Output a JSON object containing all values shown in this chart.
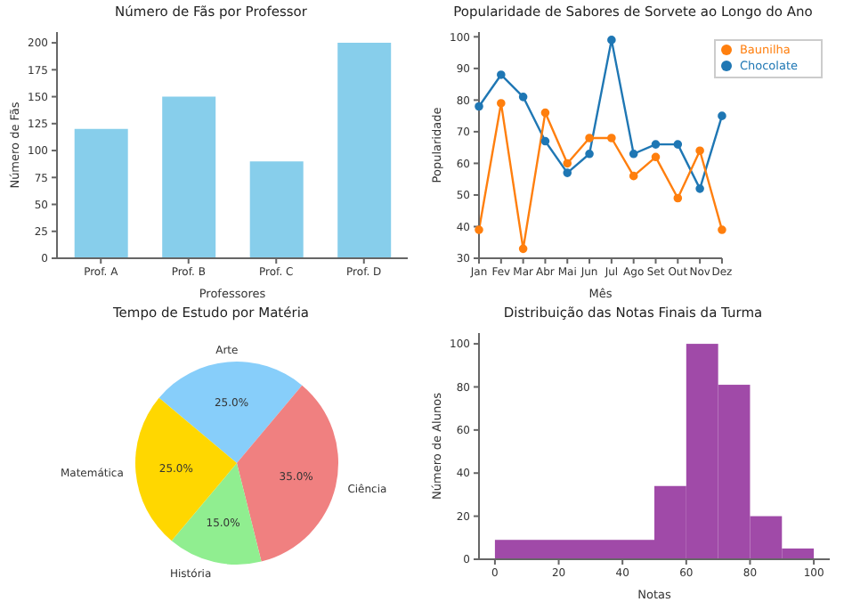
{
  "chart_data": [
    {
      "type": "bar",
      "title": "Número de Fãs por Professor",
      "xlabel": "Professores",
      "ylabel": "Número de Fãs",
      "categories": [
        "Prof. A",
        "Prof. B",
        "Prof. C",
        "Prof. D"
      ],
      "values": [
        120,
        150,
        90,
        200
      ],
      "color": "#87ceeb",
      "ylim": [
        0,
        210
      ],
      "yticks": [
        0,
        25,
        50,
        75,
        100,
        125,
        150,
        175,
        200
      ],
      "grid": false,
      "legend": false
    },
    {
      "type": "line",
      "title": "Popularidade de Sabores de Sorvete ao Longo do Ano",
      "xlabel": "Mês",
      "ylabel": "Popularidade",
      "categories": [
        "Jan",
        "Fev",
        "Mar",
        "Abr",
        "Mai",
        "Jun",
        "Jul",
        "Ago",
        "Set",
        "Out",
        "Nov",
        "Dez"
      ],
      "series": [
        {
          "name": "Chocolate",
          "color": "#1f77b4",
          "values": [
            78,
            88,
            81,
            67,
            57,
            63,
            99,
            63,
            66,
            66,
            52,
            75
          ]
        },
        {
          "name": "Baunilha",
          "color": "#ff7f0e",
          "values": [
            39,
            79,
            33,
            76,
            60,
            68,
            68,
            56,
            62,
            49,
            64,
            39
          ]
        }
      ],
      "ylim": [
        30,
        101.5
      ],
      "yticks": [
        30,
        40,
        50,
        60,
        70,
        80,
        90,
        100
      ],
      "marker": "circle",
      "line_style": "solid",
      "legend": "top right",
      "grid": false
    },
    {
      "type": "pie",
      "title": "Tempo de Estudo por Matéria",
      "categories": [
        "Arte",
        "Ciência",
        "História",
        "Matemática"
      ],
      "values": [
        25,
        35,
        15,
        25
      ],
      "colors": [
        "#87cefa",
        "#f08080",
        "#90ee90",
        "#ffd700"
      ],
      "value_labels": [
        "25.0%",
        "35.0%",
        "15.0%",
        "25.0%"
      ],
      "legend": false
    },
    {
      "type": "histogram",
      "title": "Distribuição das Notas Finais da Turma",
      "xlabel": "Notas",
      "ylabel": "Número de Alunos",
      "bins": [
        0,
        50,
        60,
        70,
        80,
        90,
        100
      ],
      "values": [
        9,
        34,
        100,
        81,
        20,
        5
      ],
      "color": "#a04aa8",
      "xlim": [
        -5,
        105
      ],
      "xticks": [
        0,
        20,
        40,
        60,
        80,
        100
      ],
      "ylim": [
        0,
        105
      ],
      "yticks": [
        0,
        20,
        40,
        60,
        80,
        100
      ],
      "grid": false,
      "legend": false
    }
  ]
}
